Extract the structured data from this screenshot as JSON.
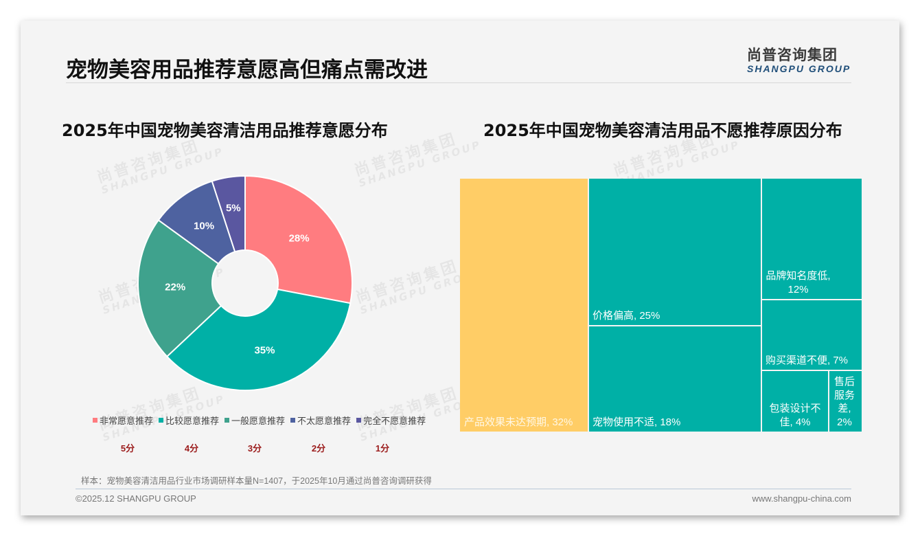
{
  "header": {
    "title": "宠物美容用品推荐意愿高但痛点需改进",
    "logo_cn": "尚普咨询集团",
    "logo_en": "SHANGPU GROUP"
  },
  "watermark": {
    "cn": "尚普咨询集团",
    "en": "SHANGPU GROUP"
  },
  "left_chart": {
    "title": "2025年中国宠物美容清洁用品推荐意愿分布",
    "scores": [
      "5分",
      "4分",
      "3分",
      "2分",
      "1分"
    ]
  },
  "right_chart": {
    "title": "2025年中国宠物美容清洁用品不愿推荐原因分布"
  },
  "chart_data": [
    {
      "type": "pie",
      "subtype": "donut",
      "title": "2025年中国宠物美容清洁用品推荐意愿分布",
      "categories": [
        "非常愿意推荐",
        "比较愿意推荐",
        "一般愿意推荐",
        "不太愿意推荐",
        "完全不愿意推荐"
      ],
      "values": [
        28,
        35,
        22,
        10,
        5
      ],
      "labels": [
        "28%",
        "35%",
        "22%",
        "10%",
        "5%"
      ],
      "colors": [
        "#ff7c80",
        "#00b0a6",
        "#3fa28d",
        "#4e62a0",
        "#5a57a0"
      ],
      "scores": [
        "5分",
        "4分",
        "3分",
        "2分",
        "1分"
      ],
      "legend_position": "bottom"
    },
    {
      "type": "treemap",
      "title": "2025年中国宠物美容清洁用品不愿推荐原因分布",
      "categories": [
        "产品效果未达预期",
        "价格偏高",
        "宠物使用不适",
        "品牌知名度低",
        "购买渠道不便",
        "包装设计不佳",
        "售后服务差"
      ],
      "values": [
        32,
        25,
        18,
        12,
        7,
        4,
        2
      ],
      "labels": [
        "产品效果未达预期, 32%",
        "价格偏高, 25%",
        "宠物使用不适, 18%",
        "品牌知名度低, 12%",
        "购买渠道不便, 7%",
        "包装设计不佳, 4%",
        "售后服务差, 2%"
      ],
      "colors": [
        "#ffcd66",
        "#00b0a6",
        "#00b0a6",
        "#00b0a6",
        "#00b0a6",
        "#00b0a6",
        "#00b0a6"
      ]
    }
  ],
  "footer": {
    "note": "样本：宠物美容清洁用品行业市场调研样本量N=1407，于2025年10月通过尚普咨询调研获得",
    "copyright": "©2025.12 SHANGPU GROUP",
    "website": "www.shangpu-china.com"
  }
}
